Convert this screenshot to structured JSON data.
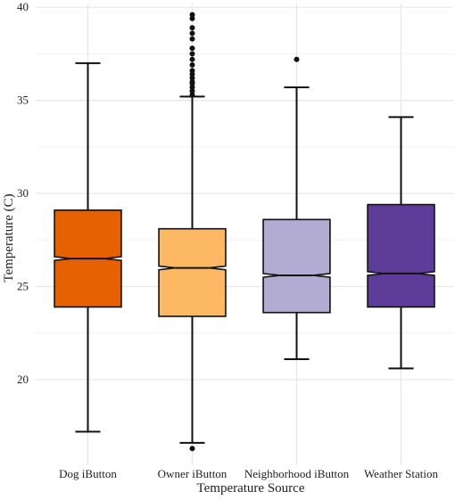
{
  "chart_data": {
    "type": "boxplot",
    "notched": true,
    "title": "",
    "xlabel": "Temperature Source",
    "ylabel": "Temperature (C)",
    "ylim": [
      15.4,
      40.2
    ],
    "yticks": [
      20,
      25,
      30,
      35,
      40
    ],
    "categories": [
      "Dog iButton",
      "Owner iButton",
      "Neighborhood iButton",
      "Weather Station"
    ],
    "series": [
      {
        "category": "Dog iButton",
        "color": "#e66101",
        "whisker_low": 17.2,
        "q1": 23.9,
        "median": 26.5,
        "q3": 29.1,
        "whisker_high": 37.0,
        "notch_low": 26.4,
        "notch_high": 26.6,
        "outliers": []
      },
      {
        "category": "Owner iButton",
        "color": "#fdb863",
        "whisker_low": 16.6,
        "q1": 23.4,
        "median": 26.0,
        "q3": 28.1,
        "whisker_high": 35.2,
        "notch_low": 25.9,
        "notch_high": 26.1,
        "outliers": [
          16.3,
          35.3,
          35.5,
          35.7,
          35.9,
          36.0,
          36.2,
          36.4,
          36.6,
          36.9,
          37.2,
          37.5,
          37.8,
          38.3,
          38.6,
          38.9,
          39.4,
          39.6
        ]
      },
      {
        "category": "Neighborhood iButton",
        "color": "#b2abd2",
        "whisker_low": 21.1,
        "q1": 23.6,
        "median": 25.6,
        "q3": 28.6,
        "whisker_high": 35.7,
        "notch_low": 25.5,
        "notch_high": 25.7,
        "outliers": [
          37.2
        ]
      },
      {
        "category": "Weather Station",
        "color": "#5e3c99",
        "whisker_low": 20.6,
        "q1": 23.9,
        "median": 25.7,
        "q3": 29.4,
        "whisker_high": 34.1,
        "notch_low": 25.6,
        "notch_high": 25.8,
        "outliers": []
      }
    ],
    "grid": true,
    "legend": "none"
  }
}
